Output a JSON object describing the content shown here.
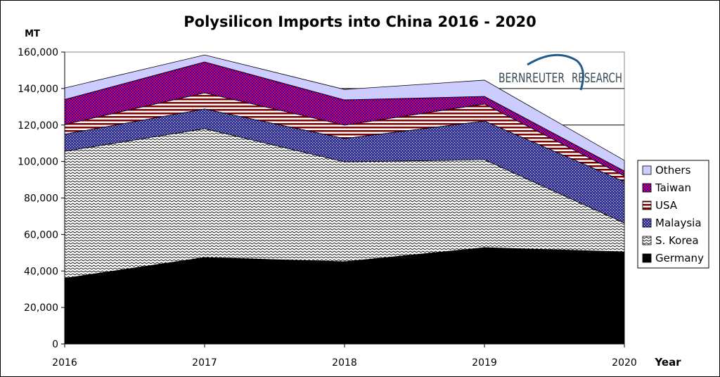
{
  "chart_data": {
    "type": "area",
    "stacked": true,
    "title": "Polysilicon Imports into China 2016 - 2020",
    "ylabel": "MT",
    "xlabel": "Year",
    "x": [
      "2016",
      "2017",
      "2018",
      "2019",
      "2020"
    ],
    "ylim": [
      0,
      160000
    ],
    "yticks": [
      "0",
      "20,000",
      "40,000",
      "60,000",
      "80,000",
      "100,000",
      "120,000",
      "140,000",
      "160,000"
    ],
    "yticks_values": [
      0,
      20000,
      40000,
      60000,
      80000,
      100000,
      120000,
      140000,
      160000
    ],
    "legend_position": "right",
    "series": [
      {
        "name": "Germany",
        "pattern": "solid",
        "color": "#000000",
        "values": [
          36000,
          47400,
          45100,
          52800,
          50500
        ]
      },
      {
        "name": "S. Korea",
        "pattern": "wave",
        "color": "#000000",
        "values": [
          69600,
          70600,
          54700,
          48200,
          15800
        ]
      },
      {
        "name": "Malaysia",
        "pattern": "dots",
        "color": "#333399",
        "values": [
          9400,
          10800,
          12800,
          21200,
          22700
        ]
      },
      {
        "name": "USA",
        "pattern": "hstripes",
        "color": "#800000",
        "values": [
          5300,
          8800,
          7300,
          9300,
          3100
        ]
      },
      {
        "name": "Taiwan",
        "pattern": "checker",
        "color": "#cc0033",
        "values": [
          13700,
          17000,
          13900,
          4200,
          2700
        ]
      },
      {
        "name": "Others",
        "pattern": "solid",
        "color": "#ccccff",
        "values": [
          6300,
          3800,
          5700,
          8900,
          5800
        ]
      }
    ]
  },
  "logo": {
    "left": "BERNREUTER",
    "right": "RESEARCH",
    "arc_color": "#1f5a8a"
  }
}
